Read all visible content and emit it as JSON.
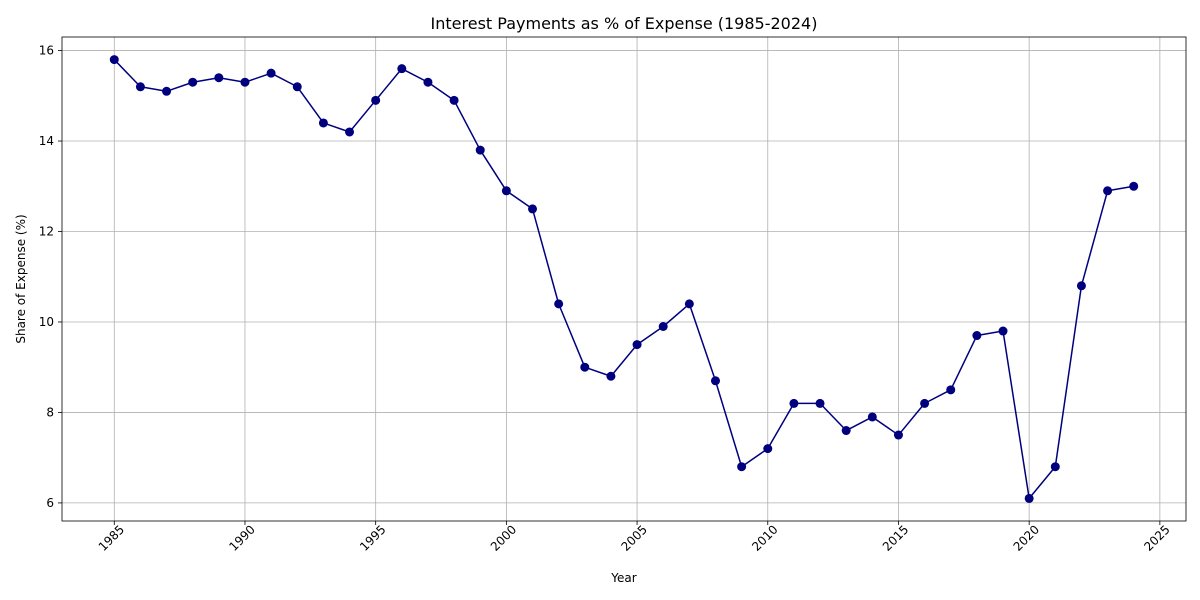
{
  "chart_data": {
    "type": "line",
    "title": "Interest Payments as % of Expense (1985-2024)",
    "xlabel": "Year",
    "ylabel": "Share of Expense (%)",
    "xlim": [
      1983,
      2026
    ],
    "ylim": [
      5.6,
      16.3
    ],
    "x_ticks": [
      1985,
      1990,
      1995,
      2000,
      2005,
      2010,
      2015,
      2020,
      2025
    ],
    "y_ticks": [
      6,
      8,
      10,
      12,
      14,
      16
    ],
    "x_tick_rotation": 45,
    "grid": true,
    "legend": "none",
    "color": "#00007f",
    "marker": "circle",
    "series": [
      {
        "x": [
          1985,
          1986,
          1987,
          1988,
          1989,
          1990,
          1991,
          1992,
          1993,
          1994,
          1995,
          1996,
          1997,
          1998,
          1999,
          2000,
          2001,
          2002,
          2003,
          2004,
          2005,
          2006,
          2007,
          2008,
          2009,
          2010,
          2011,
          2012,
          2013,
          2014,
          2015,
          2016,
          2017,
          2018,
          2019,
          2020,
          2021,
          2022,
          2023,
          2024
        ],
        "values": [
          15.8,
          15.2,
          15.1,
          15.3,
          15.4,
          15.3,
          15.5,
          15.2,
          14.4,
          14.2,
          14.9,
          15.6,
          15.3,
          14.9,
          13.8,
          12.9,
          12.5,
          10.4,
          9.0,
          8.8,
          9.5,
          9.9,
          10.4,
          8.7,
          6.8,
          7.2,
          8.2,
          8.2,
          7.6,
          7.9,
          7.5,
          8.2,
          8.5,
          9.7,
          9.8,
          6.1,
          6.8,
          10.8,
          12.9,
          13.0
        ]
      }
    ]
  }
}
